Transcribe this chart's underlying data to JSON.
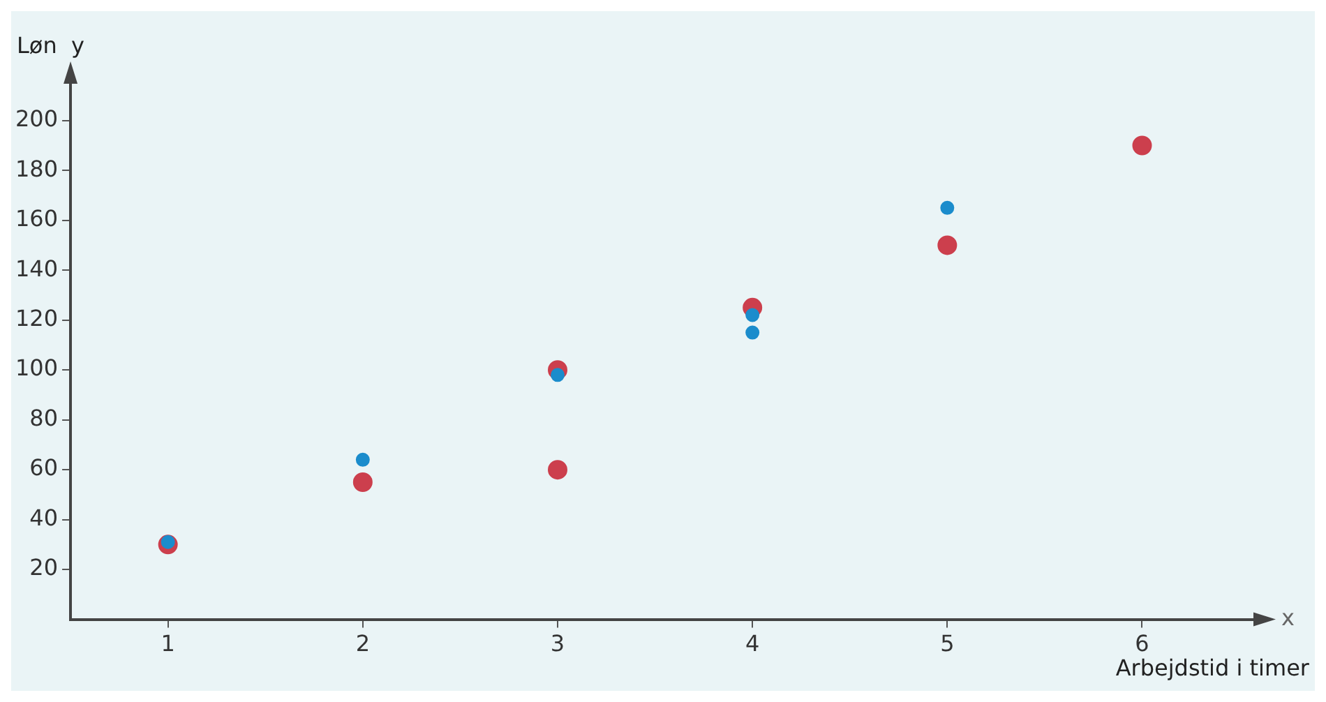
{
  "chart_data": {
    "type": "scatter",
    "ylabel": "Løn  y",
    "xlabel": "Arbejdstid i timer",
    "annotations": [
      "x"
    ],
    "xlim": [
      0.5,
      6.6
    ],
    "ylim": [
      0,
      217
    ],
    "xticks": [
      1,
      2,
      3,
      4,
      5,
      6
    ],
    "yticks": [
      20,
      40,
      60,
      80,
      100,
      120,
      140,
      160,
      180,
      200
    ],
    "marker": "circle",
    "legend": false,
    "series": [
      {
        "color": "#1b8ccc",
        "x": [
          1,
          2,
          3,
          4,
          4,
          5
        ],
        "values": [
          31,
          64,
          98,
          122,
          115,
          165
        ]
      },
      {
        "color": "#cc3f4d",
        "x": [
          1,
          2,
          3,
          3,
          4,
          5,
          6
        ],
        "values": [
          30,
          55,
          100,
          60,
          125,
          150,
          190
        ]
      }
    ]
  }
}
